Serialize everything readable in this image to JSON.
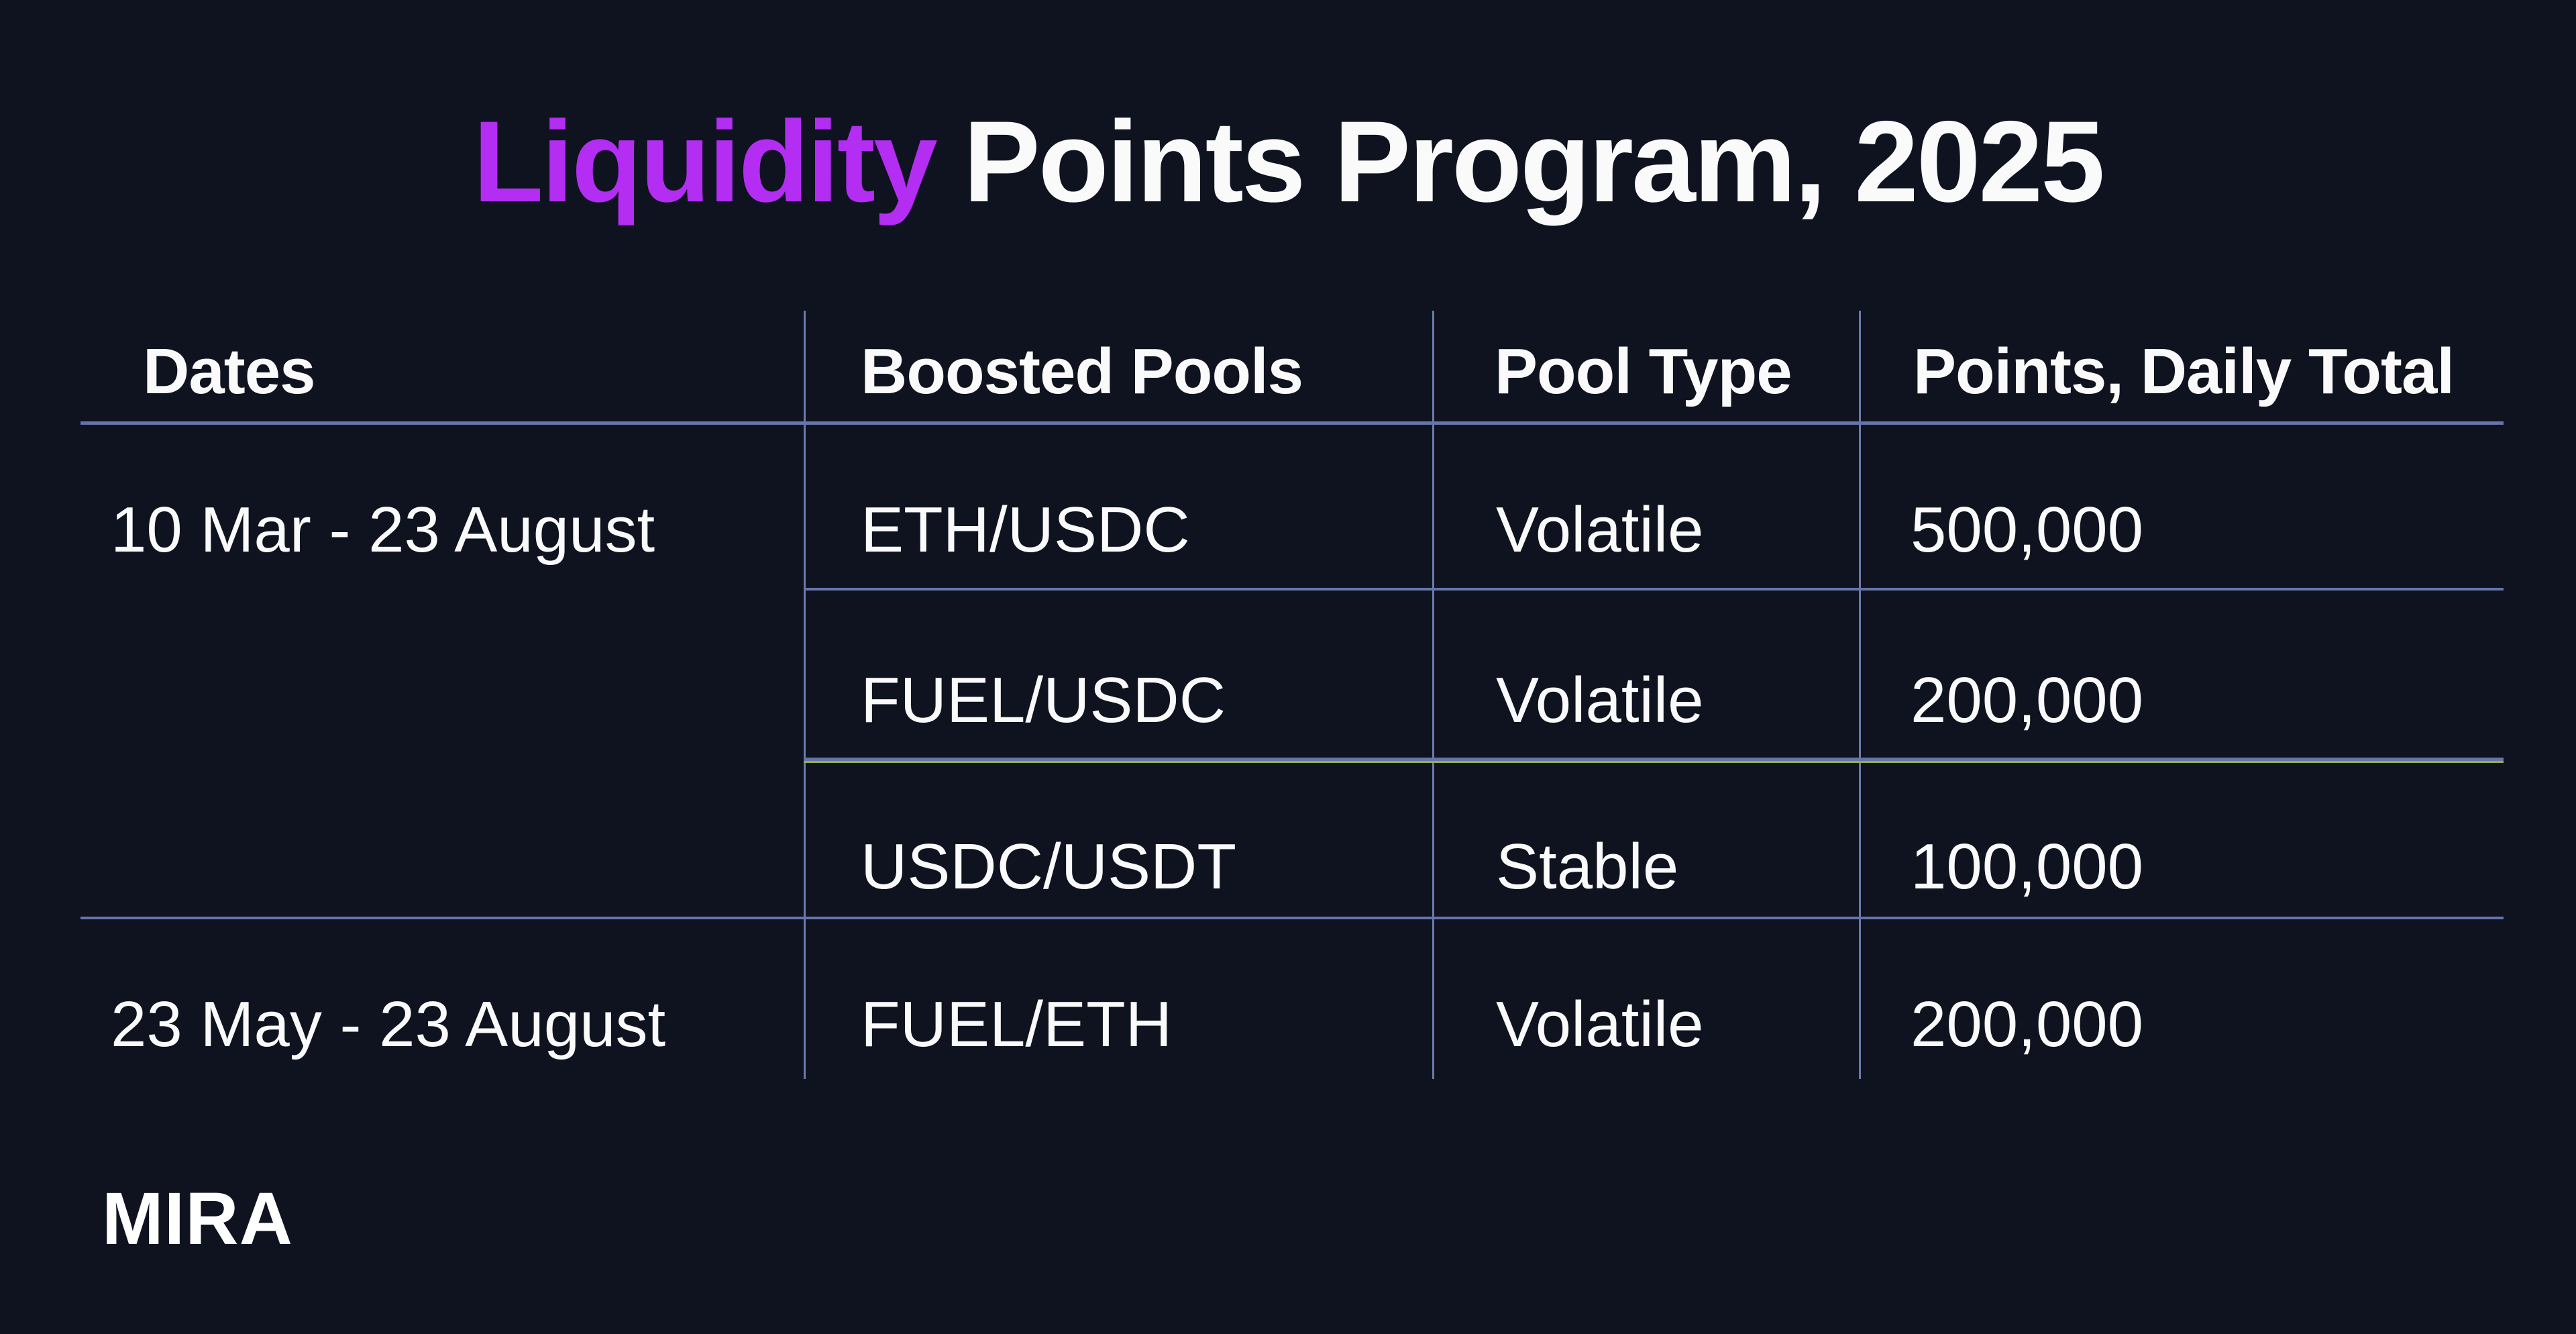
{
  "title": {
    "highlight": "Liquidity",
    "rest": "Points Program, 2025"
  },
  "chart_data": {
    "type": "table",
    "title": "Liquidity Points Program, 2025",
    "columns": [
      "Dates",
      "Boosted Pools",
      "Pool Type",
      "Points, Daily Total"
    ],
    "rows": [
      [
        "10 Mar - 23 August",
        "ETH/USDC",
        "Volatile",
        "500,000"
      ],
      [
        "10 Mar - 23 August",
        "FUEL/USDC",
        "Volatile",
        "200,000"
      ],
      [
        "10 Mar - 23 August",
        "USDC/USDT",
        "Stable",
        "100,000"
      ],
      [
        "23 May - 23 August",
        "FUEL/ETH",
        "Volatile",
        "200,000"
      ]
    ],
    "notes": {
      "date_groups": [
        {
          "dates": "10 Mar - 23 August",
          "row_indexes": [
            0,
            1,
            2
          ]
        },
        {
          "dates": "23 May - 23 August",
          "row_indexes": [
            3
          ]
        }
      ]
    }
  },
  "footer": {
    "brand": "MIRA"
  },
  "colors": {
    "background": "#0e131f",
    "accent_purple": "#b32df2",
    "grid_blue": "#6875ab",
    "grid_green": "#90b43e",
    "text": "#fafafa"
  }
}
